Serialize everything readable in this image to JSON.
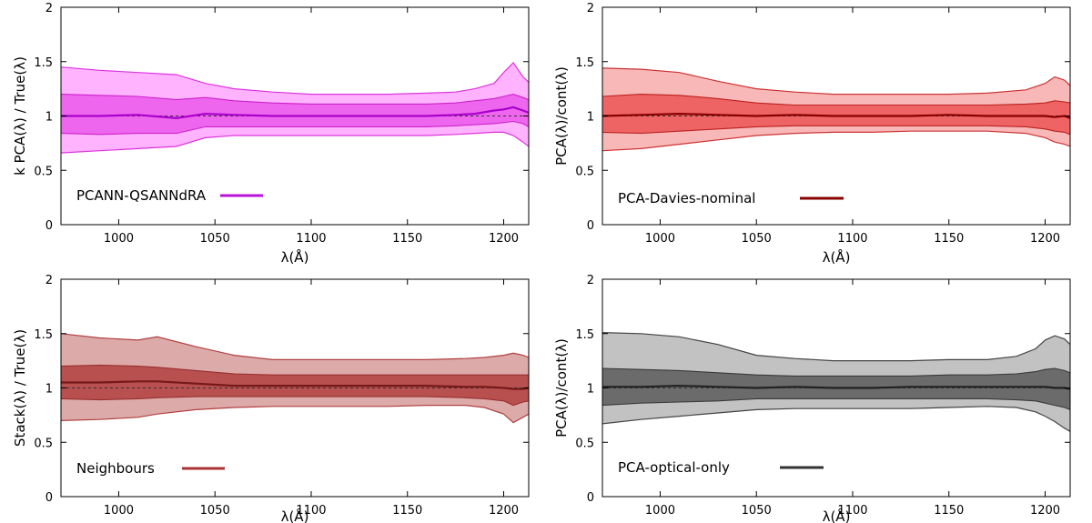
{
  "chart_data": [
    {
      "type": "area",
      "xlabel": "λ(Å)",
      "ylabel": "k  PCA(λ) / True(λ)",
      "xlim": [
        970,
        1213
      ],
      "ylim": [
        0,
        2
      ],
      "xticks": [
        1000,
        1050,
        1100,
        1150,
        1200
      ],
      "yticks": [
        0,
        0.5,
        1,
        1.5,
        2
      ],
      "ytick_labels": [
        "0",
        "0.5",
        "1",
        "1.5",
        "2"
      ],
      "legend": {
        "label": "PCANN-QSANNdRA",
        "placement": "bottom-left"
      },
      "reference_line": 1.0,
      "colors": {
        "outer": "#ffb3ff",
        "outer_edge": "#dd33dd",
        "inner": "#ee66ee",
        "inner_edge": "#cc22cc",
        "median": "#aa00cc",
        "legend_line": "#bb11dd"
      },
      "x": [
        970,
        990,
        1010,
        1030,
        1045,
        1060,
        1080,
        1100,
        1120,
        1140,
        1160,
        1175,
        1185,
        1195,
        1200,
        1205,
        1210,
        1213
      ],
      "median": [
        1.0,
        1.0,
        1.01,
        0.98,
        1.02,
        1.01,
        1.0,
        1.0,
        1.0,
        1.0,
        1.0,
        1.01,
        1.02,
        1.05,
        1.06,
        1.08,
        1.05,
        1.03
      ],
      "inner_upper": [
        1.2,
        1.19,
        1.18,
        1.15,
        1.17,
        1.14,
        1.12,
        1.11,
        1.11,
        1.11,
        1.11,
        1.12,
        1.14,
        1.16,
        1.18,
        1.2,
        1.17,
        1.15
      ],
      "inner_lower": [
        0.84,
        0.83,
        0.84,
        0.84,
        0.9,
        0.9,
        0.9,
        0.9,
        0.9,
        0.9,
        0.9,
        0.91,
        0.92,
        0.93,
        0.94,
        0.95,
        0.93,
        0.9
      ],
      "outer_upper": [
        1.45,
        1.42,
        1.4,
        1.38,
        1.3,
        1.25,
        1.22,
        1.2,
        1.2,
        1.2,
        1.21,
        1.22,
        1.25,
        1.3,
        1.4,
        1.49,
        1.36,
        1.31
      ],
      "outer_lower": [
        0.66,
        0.68,
        0.7,
        0.72,
        0.8,
        0.82,
        0.82,
        0.82,
        0.82,
        0.82,
        0.82,
        0.83,
        0.84,
        0.85,
        0.85,
        0.82,
        0.76,
        0.72
      ]
    },
    {
      "type": "area",
      "xlabel": "λ(Å)",
      "ylabel": "PCA(λ)/cont(λ)",
      "xlim": [
        970,
        1213
      ],
      "ylim": [
        0,
        2
      ],
      "xticks": [
        1000,
        1050,
        1100,
        1150,
        1200
      ],
      "yticks": [
        0,
        0.5,
        1,
        1.5,
        2
      ],
      "ytick_labels": [
        "0",
        "0.5",
        "1",
        "1.5",
        "2"
      ],
      "legend": {
        "label": "PCA-Davies-nominal",
        "placement": "bottom-left"
      },
      "reference_line": 1.0,
      "colors": {
        "outer": "#f9b8b8",
        "outer_edge": "#cc3333",
        "inner": "#ee6363",
        "inner_edge": "#bb2222",
        "median": "#880000",
        "legend_line": "#880000"
      },
      "x": [
        970,
        990,
        1010,
        1030,
        1050,
        1070,
        1090,
        1110,
        1130,
        1150,
        1170,
        1190,
        1200,
        1205,
        1210,
        1213
      ],
      "median": [
        1.0,
        1.01,
        1.02,
        1.01,
        1.0,
        1.01,
        1.0,
        1.0,
        1.0,
        1.01,
        1.0,
        1.0,
        1.0,
        0.99,
        1.0,
        0.98
      ],
      "inner_upper": [
        1.18,
        1.2,
        1.19,
        1.16,
        1.12,
        1.1,
        1.1,
        1.1,
        1.1,
        1.1,
        1.1,
        1.11,
        1.12,
        1.14,
        1.13,
        1.12
      ],
      "inner_lower": [
        0.85,
        0.84,
        0.86,
        0.88,
        0.9,
        0.91,
        0.91,
        0.91,
        0.91,
        0.91,
        0.91,
        0.9,
        0.88,
        0.86,
        0.85,
        0.83
      ],
      "outer_upper": [
        1.44,
        1.43,
        1.4,
        1.32,
        1.25,
        1.22,
        1.2,
        1.2,
        1.2,
        1.2,
        1.21,
        1.24,
        1.3,
        1.36,
        1.33,
        1.28
      ],
      "outer_lower": [
        0.68,
        0.7,
        0.74,
        0.78,
        0.82,
        0.84,
        0.85,
        0.85,
        0.86,
        0.86,
        0.86,
        0.84,
        0.8,
        0.76,
        0.74,
        0.72
      ]
    },
    {
      "type": "area",
      "xlabel": "λ(Å)",
      "ylabel": "Stack(λ) / True(λ)",
      "xlim": [
        970,
        1213
      ],
      "ylim": [
        0,
        2
      ],
      "xticks": [
        1000,
        1050,
        1100,
        1150,
        1200
      ],
      "yticks": [
        0,
        0.5,
        1,
        1.5,
        2
      ],
      "ytick_labels": [
        "0",
        "0.5",
        "1",
        "1.5",
        "2"
      ],
      "legend": {
        "label": "Neighbours",
        "placement": "bottom-left"
      },
      "reference_line": 1.0,
      "colors": {
        "outer": "#ddaaaa",
        "outer_edge": "#b04040",
        "inner": "#b85050",
        "inner_edge": "#993030",
        "median": "#771818",
        "legend_line": "#aa3333"
      },
      "x": [
        970,
        990,
        1010,
        1020,
        1040,
        1060,
        1080,
        1100,
        1120,
        1140,
        1160,
        1180,
        1190,
        1200,
        1205,
        1210,
        1213
      ],
      "median": [
        1.05,
        1.05,
        1.06,
        1.06,
        1.04,
        1.02,
        1.02,
        1.02,
        1.02,
        1.02,
        1.02,
        1.01,
        1.01,
        1.0,
        0.99,
        0.99,
        1.0
      ],
      "inner_upper": [
        1.2,
        1.21,
        1.2,
        1.19,
        1.16,
        1.13,
        1.12,
        1.12,
        1.12,
        1.12,
        1.12,
        1.12,
        1.12,
        1.12,
        1.12,
        1.12,
        1.12
      ],
      "inner_lower": [
        0.9,
        0.89,
        0.9,
        0.91,
        0.92,
        0.92,
        0.92,
        0.92,
        0.92,
        0.92,
        0.92,
        0.91,
        0.9,
        0.88,
        0.84,
        0.87,
        0.88
      ],
      "outer_upper": [
        1.5,
        1.46,
        1.44,
        1.47,
        1.38,
        1.3,
        1.26,
        1.26,
        1.26,
        1.26,
        1.26,
        1.27,
        1.28,
        1.3,
        1.32,
        1.3,
        1.28
      ],
      "outer_lower": [
        0.7,
        0.71,
        0.73,
        0.76,
        0.8,
        0.82,
        0.83,
        0.83,
        0.83,
        0.83,
        0.84,
        0.84,
        0.82,
        0.76,
        0.68,
        0.73,
        0.76
      ]
    },
    {
      "type": "area",
      "xlabel": "λ(Å)",
      "ylabel": "PCA(λ)/cont(λ)",
      "xlim": [
        970,
        1213
      ],
      "ylim": [
        0,
        2
      ],
      "xticks": [
        1000,
        1050,
        1100,
        1150,
        1200
      ],
      "yticks": [
        0,
        0.5,
        1,
        1.5,
        2
      ],
      "ytick_labels": [
        "0",
        "0.5",
        "1",
        "1.5",
        "2"
      ],
      "legend": {
        "label": "PCA-optical-only",
        "placement": "bottom-left"
      },
      "reference_line": 1.0,
      "colors": {
        "outer": "#c2c2c2",
        "outer_edge": "#444444",
        "inner": "#6b6b6b",
        "inner_edge": "#3a3a3a",
        "median": "#222222",
        "legend_line": "#333333"
      },
      "x": [
        970,
        990,
        1010,
        1030,
        1050,
        1070,
        1090,
        1110,
        1130,
        1150,
        1170,
        1185,
        1195,
        1200,
        1205,
        1210,
        1213
      ],
      "median": [
        1.01,
        1.01,
        1.02,
        1.01,
        1.0,
        1.01,
        1.0,
        1.0,
        1.01,
        1.01,
        1.01,
        1.01,
        1.01,
        1.01,
        1.0,
        1.0,
        0.99
      ],
      "inner_upper": [
        1.18,
        1.17,
        1.16,
        1.14,
        1.12,
        1.11,
        1.11,
        1.11,
        1.11,
        1.12,
        1.12,
        1.13,
        1.15,
        1.17,
        1.18,
        1.16,
        1.14
      ],
      "inner_lower": [
        0.84,
        0.86,
        0.87,
        0.88,
        0.9,
        0.9,
        0.9,
        0.9,
        0.9,
        0.9,
        0.9,
        0.89,
        0.88,
        0.86,
        0.84,
        0.82,
        0.8
      ],
      "outer_upper": [
        1.51,
        1.5,
        1.47,
        1.4,
        1.3,
        1.27,
        1.25,
        1.25,
        1.25,
        1.26,
        1.26,
        1.29,
        1.36,
        1.44,
        1.48,
        1.45,
        1.4
      ],
      "outer_lower": [
        0.67,
        0.71,
        0.74,
        0.77,
        0.8,
        0.81,
        0.81,
        0.81,
        0.81,
        0.82,
        0.83,
        0.82,
        0.78,
        0.74,
        0.69,
        0.63,
        0.6
      ]
    }
  ]
}
